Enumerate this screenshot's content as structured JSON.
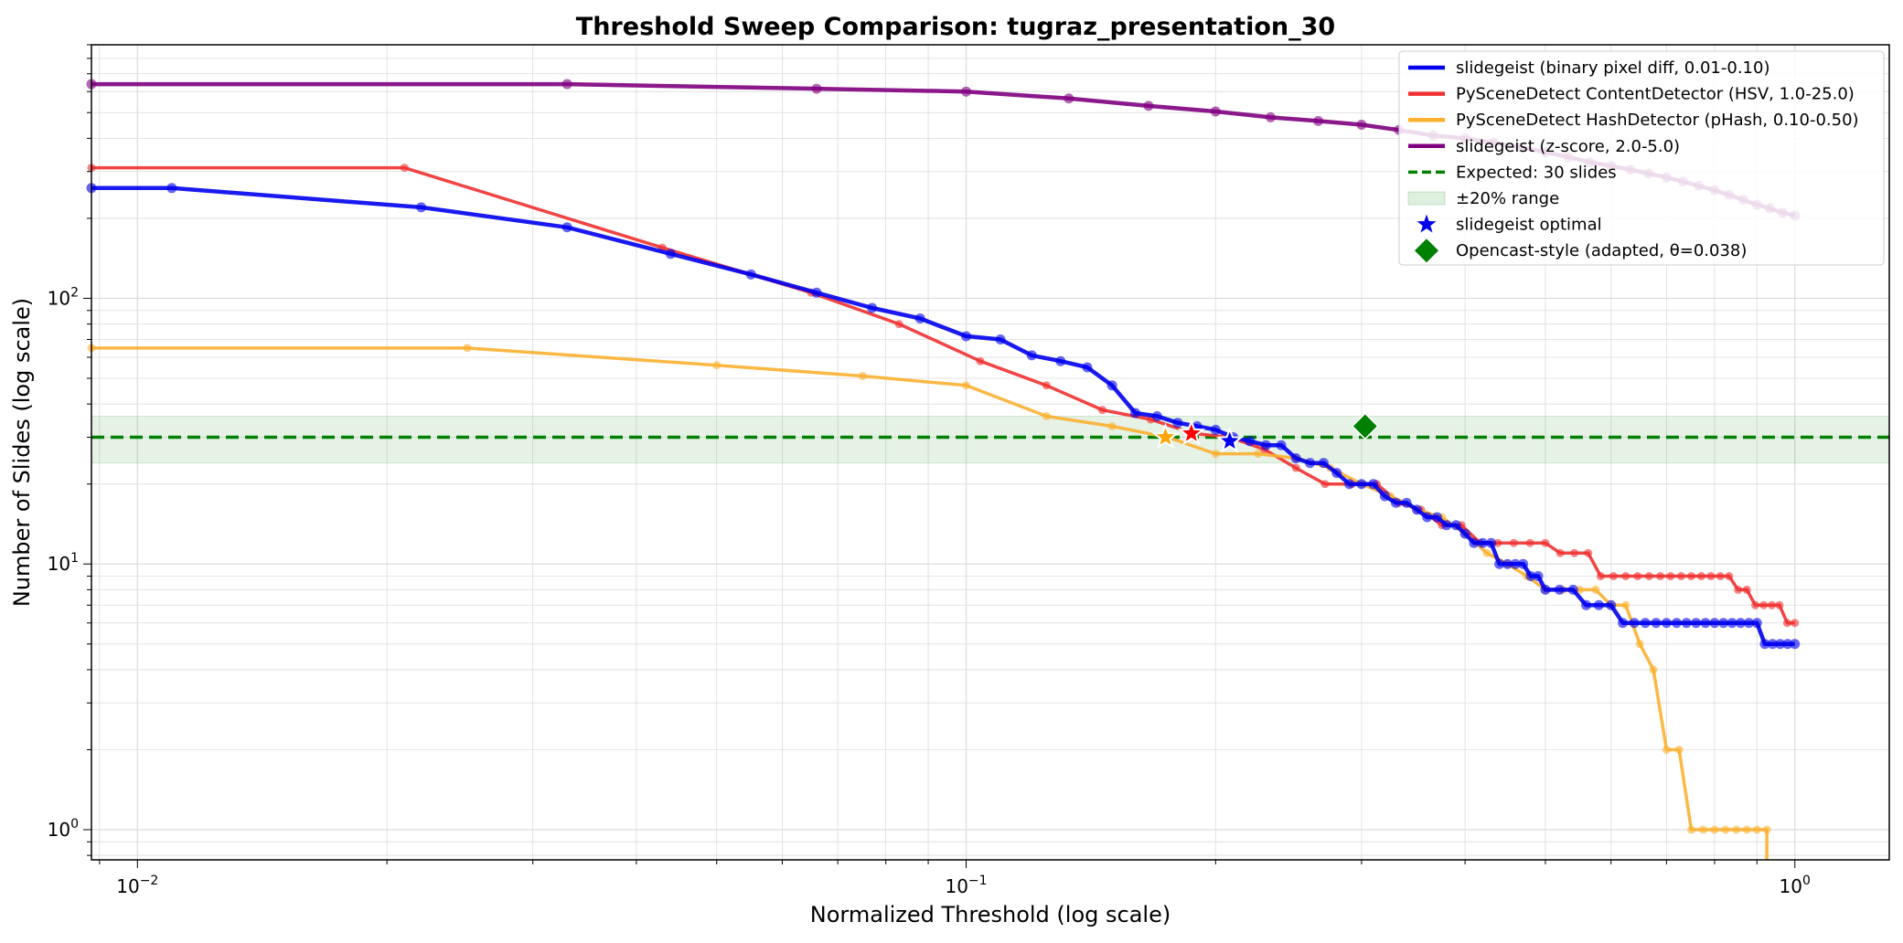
{
  "chart_data": {
    "type": "line",
    "title": "Threshold Sweep Comparison: tugraz_presentation_30",
    "xlabel": "Normalized Threshold (log scale)",
    "ylabel": "Number of Slides (log scale)",
    "xscale": "log",
    "yscale": "log",
    "xlim": [
      0.0088,
      1.3
    ],
    "ylim": [
      0.77,
      900
    ],
    "grid": true,
    "legend_position": "top-right",
    "x_ticks": [
      {
        "value": 0.01,
        "label": "10",
        "exp": "−2"
      },
      {
        "value": 0.1,
        "label": "10",
        "exp": "−1"
      },
      {
        "value": 1,
        "label": "10",
        "exp": "0"
      }
    ],
    "y_ticks": [
      {
        "value": 1,
        "label": "10",
        "exp": "0"
      },
      {
        "value": 10,
        "label": "10",
        "exp": "1"
      },
      {
        "value": 100,
        "label": "10",
        "exp": "2"
      }
    ],
    "reference": {
      "expected": 30,
      "band": [
        24,
        36
      ],
      "expected_label": "Expected: 30 slides",
      "band_label": "±20% range"
    },
    "series": [
      {
        "name": "slidegeist (z-score, 2.0-5.0)",
        "color": "#800080",
        "x": [
          0.0088,
          0.033,
          0.066,
          0.1,
          0.133,
          0.166,
          0.2,
          0.233,
          0.266,
          0.3,
          0.333,
          0.366,
          0.4,
          0.433,
          0.466,
          0.5,
          0.533,
          0.566,
          0.6,
          0.633,
          0.666,
          0.7,
          0.733,
          0.766,
          0.8,
          0.833,
          0.866,
          0.9,
          0.933,
          0.966,
          1.0
        ],
        "y": [
          640,
          640,
          615,
          600,
          565,
          530,
          505,
          480,
          465,
          450,
          430,
          410,
          400,
          385,
          370,
          355,
          340,
          325,
          315,
          305,
          295,
          285,
          275,
          265,
          255,
          245,
          235,
          225,
          218,
          210,
          205
        ]
      },
      {
        "name": "PySceneDetect ContentDetector (HSV, 1.0-25.0)",
        "color": "#f03030",
        "x": [
          0.0088,
          0.021,
          0.043,
          0.065,
          0.083,
          0.104,
          0.125,
          0.146,
          0.167,
          0.188,
          0.208,
          0.229,
          0.25,
          0.271,
          0.292,
          0.313,
          0.333,
          0.354,
          0.375,
          0.396,
          0.417,
          0.438,
          0.458,
          0.479,
          0.5,
          0.521,
          0.542,
          0.563,
          0.583,
          0.604,
          0.625,
          0.646,
          0.667,
          0.688,
          0.708,
          0.729,
          0.75,
          0.771,
          0.792,
          0.813,
          0.833,
          0.854,
          0.875,
          0.896,
          0.917,
          0.938,
          0.958,
          0.979,
          1.0
        ],
        "y": [
          310,
          310,
          155,
          105,
          80,
          58,
          47,
          38,
          35,
          31,
          30,
          27,
          23,
          20,
          20,
          20,
          17,
          16,
          14,
          14,
          12,
          12,
          12,
          12,
          12,
          11,
          11,
          11,
          9,
          9,
          9,
          9,
          9,
          9,
          9,
          9,
          9,
          9,
          9,
          9,
          9,
          8,
          8,
          7,
          7,
          7,
          7,
          6,
          6
        ]
      },
      {
        "name": "PySceneDetect HashDetector (pHash, 0.10-0.50)",
        "color": "#fbb030",
        "x": [
          0.0088,
          0.025,
          0.05,
          0.075,
          0.1,
          0.125,
          0.15,
          0.175,
          0.2,
          0.225,
          0.25,
          0.275,
          0.3,
          0.325,
          0.35,
          0.375,
          0.4,
          0.425,
          0.45,
          0.475,
          0.5,
          0.525,
          0.55,
          0.575,
          0.6,
          0.625,
          0.65,
          0.675,
          0.7,
          0.725,
          0.75,
          0.775,
          0.8,
          0.825,
          0.85,
          0.875,
          0.9,
          0.925,
          0.925
        ],
        "y": [
          65,
          65,
          56,
          51,
          47,
          36,
          33,
          30,
          26,
          26,
          25,
          23,
          20,
          18,
          16,
          15,
          13,
          11,
          10,
          9,
          8,
          8,
          8,
          8,
          7,
          7,
          5,
          4,
          2,
          2,
          1,
          1,
          1,
          1,
          1,
          1,
          1,
          1,
          0.7
        ]
      },
      {
        "name": "slidegeist (binary pixel diff, 0.01-0.10)",
        "color": "#0000ee",
        "x": [
          0.0088,
          0.011,
          0.022,
          0.033,
          0.044,
          0.055,
          0.066,
          0.077,
          0.088,
          0.1,
          0.11,
          0.12,
          0.13,
          0.14,
          0.15,
          0.16,
          0.17,
          0.18,
          0.19,
          0.2,
          0.21,
          0.22,
          0.23,
          0.24,
          0.25,
          0.26,
          0.27,
          0.28,
          0.29,
          0.3,
          0.31,
          0.32,
          0.33,
          0.34,
          0.35,
          0.36,
          0.37,
          0.38,
          0.39,
          0.4,
          0.41,
          0.42,
          0.43,
          0.44,
          0.45,
          0.46,
          0.47,
          0.48,
          0.49,
          0.5,
          0.52,
          0.54,
          0.56,
          0.58,
          0.6,
          0.62,
          0.64,
          0.66,
          0.68,
          0.7,
          0.72,
          0.74,
          0.76,
          0.78,
          0.8,
          0.82,
          0.84,
          0.86,
          0.88,
          0.9,
          0.92,
          0.94,
          0.96,
          0.98,
          1.0
        ],
        "y": [
          260,
          260,
          220,
          185,
          147,
          123,
          105,
          92,
          84,
          72,
          70,
          61,
          58,
          55,
          47,
          37,
          36,
          34,
          33,
          32,
          30,
          29,
          28,
          28,
          25,
          24,
          24,
          22,
          20,
          20,
          20,
          18,
          17,
          17,
          16,
          15,
          15,
          14,
          14,
          13,
          12,
          12,
          12,
          10,
          10,
          10,
          10,
          9,
          9,
          8,
          8,
          8,
          7,
          7,
          7,
          6,
          6,
          6,
          6,
          6,
          6,
          6,
          6,
          6,
          6,
          6,
          6,
          6,
          6,
          6,
          5,
          5,
          5,
          5,
          5
        ]
      }
    ],
    "optimal_markers": [
      {
        "x": 0.174,
        "y": 30,
        "color": "#ffa500"
      },
      {
        "x": 0.187,
        "y": 31,
        "color": "#ff0000"
      },
      {
        "x": 0.208,
        "y": 29,
        "color": "#0000ee"
      }
    ],
    "opencast_point": {
      "x": 0.303,
      "y": 33,
      "color": "#008000"
    },
    "legend": [
      {
        "label": "slidegeist (binary pixel diff, 0.01-0.10)",
        "kind": "line",
        "color": "#0000ee"
      },
      {
        "label": "PySceneDetect ContentDetector (HSV, 1.0-25.0)",
        "kind": "line",
        "color": "#f03030"
      },
      {
        "label": "PySceneDetect HashDetector (pHash, 0.10-0.50)",
        "kind": "line",
        "color": "#fbb030"
      },
      {
        "label": "slidegeist (z-score, 2.0-5.0)",
        "kind": "line",
        "color": "#800080"
      },
      {
        "label": "Expected: 30 slides",
        "kind": "dashed",
        "color": "#008000"
      },
      {
        "label": "±20% range",
        "kind": "patch",
        "color": "#b9e1b9"
      },
      {
        "label": "slidegeist optimal",
        "kind": "star",
        "color": "#0000ee"
      },
      {
        "label": "Opencast-style (adapted, θ=0.038)",
        "kind": "diamond",
        "color": "#008000"
      }
    ]
  }
}
